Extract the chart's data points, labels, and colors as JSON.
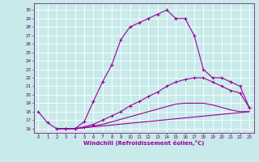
{
  "xlabel": "Windchill (Refroidissement éolien,°C)",
  "bg_color": "#c8eaea",
  "line_color": "#990099",
  "grid_color": "#ffffff",
  "xlim": [
    -0.5,
    23.5
  ],
  "ylim": [
    15.5,
    30.8
  ],
  "xticks": [
    0,
    1,
    2,
    3,
    4,
    5,
    6,
    7,
    8,
    9,
    10,
    11,
    12,
    13,
    14,
    15,
    16,
    17,
    18,
    19,
    20,
    21,
    22,
    23
  ],
  "yticks": [
    16,
    17,
    18,
    19,
    20,
    21,
    22,
    23,
    24,
    25,
    26,
    27,
    28,
    29,
    30
  ],
  "curve1_x": [
    0,
    1,
    2,
    3,
    4,
    5,
    6,
    7,
    8,
    9,
    10,
    11,
    12,
    13,
    14,
    15,
    16,
    17,
    18,
    19,
    20,
    21,
    22,
    23
  ],
  "curve1_y": [
    18.0,
    16.7,
    16.0,
    16.0,
    16.0,
    16.8,
    19.2,
    21.5,
    23.5,
    26.5,
    28.0,
    28.5,
    29.0,
    29.5,
    30.0,
    29.0,
    29.0,
    27.0,
    23.0,
    22.0,
    22.0,
    21.5,
    21.0,
    18.5
  ],
  "curve2_x": [
    2,
    3,
    4,
    5,
    6,
    7,
    8,
    9,
    10,
    11,
    12,
    13,
    14,
    15,
    16,
    17,
    18,
    19,
    20,
    21,
    22,
    23
  ],
  "curve2_y": [
    16.0,
    16.0,
    16.0,
    16.2,
    16.5,
    17.0,
    17.5,
    18.0,
    18.7,
    19.2,
    19.8,
    20.3,
    21.0,
    21.5,
    21.8,
    22.0,
    22.0,
    21.5,
    21.0,
    20.5,
    20.2,
    18.5
  ],
  "curve3_x": [
    2,
    3,
    4,
    23
  ],
  "curve3_y": [
    16.0,
    16.0,
    16.0,
    18.0
  ],
  "curve4_x": [
    2,
    3,
    4,
    5,
    6,
    7,
    8,
    9,
    10,
    11,
    12,
    13,
    14,
    15,
    16,
    17,
    18,
    19,
    20,
    21,
    22,
    23
  ],
  "curve4_y": [
    16.0,
    16.0,
    16.0,
    16.1,
    16.3,
    16.5,
    16.8,
    17.1,
    17.4,
    17.7,
    18.0,
    18.3,
    18.6,
    18.9,
    19.0,
    19.0,
    19.0,
    18.8,
    18.5,
    18.2,
    18.0,
    18.0
  ],
  "tick_fontsize": 4.0,
  "xlabel_fontsize": 5.0
}
